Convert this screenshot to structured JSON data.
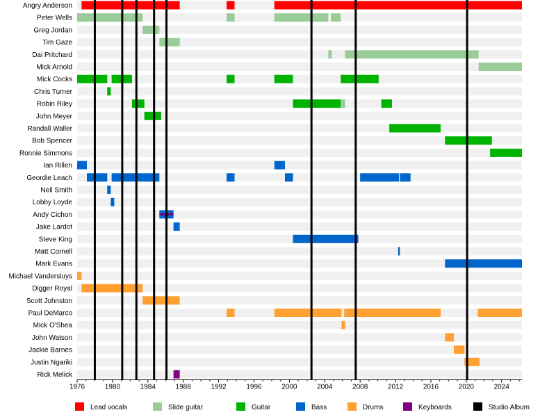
{
  "chart_data": {
    "type": "timeline",
    "x_axis": {
      "min": 1976,
      "max": 2026.3,
      "ticks": [
        1976,
        1980,
        1984,
        1988,
        1992,
        1996,
        2000,
        2004,
        2008,
        2012,
        2016,
        2020,
        2024
      ],
      "tick_labels": [
        "1976",
        "1980",
        "1984",
        "1988",
        "1992",
        "1996",
        "2000",
        "2004",
        "2008",
        "2012",
        "2016",
        "2020",
        "2024"
      ]
    },
    "legend": [
      {
        "key": "vocals",
        "label": "Lead vocals",
        "color": "#ff0000"
      },
      {
        "key": "slide",
        "label": "Slide guitar",
        "color": "#99cc99"
      },
      {
        "key": "guitar",
        "label": "Guitar",
        "color": "#00b300"
      },
      {
        "key": "bass",
        "label": "Bass",
        "color": "#0066cc"
      },
      {
        "key": "drums",
        "label": "Drums",
        "color": "#ffa033"
      },
      {
        "key": "keys",
        "label": "Keyboards",
        "color": "#800080"
      },
      {
        "key": "album",
        "label": "Studio Album",
        "color": "#000000"
      }
    ],
    "albums": [
      1978.0,
      1981.1,
      1982.7,
      1984.7,
      1986.1,
      2002.5,
      2007.5,
      2020.1
    ],
    "members": [
      {
        "name": "Angry Anderson",
        "spans": [
          {
            "r": "vocals",
            "s": 1976.5,
            "e": 1987.6
          },
          {
            "r": "vocals",
            "s": 1992.9,
            "e": 1993.8
          },
          {
            "r": "vocals",
            "s": 1998.3,
            "e": 2026.3
          }
        ]
      },
      {
        "name": "Peter Wells",
        "spans": [
          {
            "r": "slide",
            "s": 1976.0,
            "e": 1983.4
          },
          {
            "r": "slide",
            "s": 1992.9,
            "e": 1993.8
          },
          {
            "r": "slide",
            "s": 1998.3,
            "e": 2004.4
          },
          {
            "r": "slide",
            "s": 2004.7,
            "e": 2005.8
          }
        ]
      },
      {
        "name": "Greg Jordan",
        "spans": [
          {
            "r": "slide",
            "s": 1983.4,
            "e": 1985.3
          }
        ]
      },
      {
        "name": "Tim Gaze",
        "spans": [
          {
            "r": "slide",
            "s": 1985.3,
            "e": 1987.6
          }
        ]
      },
      {
        "name": "Dai Pritchard",
        "spans": [
          {
            "r": "slide",
            "s": 2004.4,
            "e": 2004.8
          },
          {
            "r": "slide",
            "s": 2006.3,
            "e": 2021.4
          }
        ]
      },
      {
        "name": "Mick Arnold",
        "spans": [
          {
            "r": "slide",
            "s": 2021.4,
            "e": 2026.3
          }
        ]
      },
      {
        "name": "Mick Cocks",
        "spans": [
          {
            "r": "guitar",
            "s": 1976.0,
            "e": 1979.4
          },
          {
            "r": "guitar",
            "s": 1979.9,
            "e": 1982.2
          },
          {
            "r": "guitar",
            "s": 1992.9,
            "e": 1993.8
          },
          {
            "r": "guitar",
            "s": 1998.3,
            "e": 2000.4
          },
          {
            "r": "guitar",
            "s": 2005.8,
            "e": 2010.1
          }
        ]
      },
      {
        "name": "Chris Turner",
        "spans": [
          {
            "r": "guitar",
            "s": 1979.4,
            "e": 1979.8
          }
        ]
      },
      {
        "name": "Robin Riley",
        "spans": [
          {
            "r": "guitar",
            "s": 1982.2,
            "e": 1983.6
          },
          {
            "r": "guitar",
            "s": 2000.4,
            "e": 2005.8
          },
          {
            "r": "slide",
            "s": 2005.8,
            "e": 2006.3
          },
          {
            "r": "guitar",
            "s": 2010.4,
            "e": 2011.6
          }
        ]
      },
      {
        "name": "John Meyer",
        "spans": [
          {
            "r": "guitar",
            "s": 1983.6,
            "e": 1985.5
          }
        ]
      },
      {
        "name": "Randall Waller",
        "spans": [
          {
            "r": "guitar",
            "s": 2011.3,
            "e": 2017.1
          }
        ]
      },
      {
        "name": "Bob Spencer",
        "spans": [
          {
            "r": "guitar",
            "s": 2017.6,
            "e": 2022.9
          }
        ]
      },
      {
        "name": "Ronnie Simmons",
        "spans": [
          {
            "r": "guitar",
            "s": 2022.7,
            "e": 2026.3
          }
        ]
      },
      {
        "name": "Ian Rillen",
        "spans": [
          {
            "r": "bass",
            "s": 1976.0,
            "e": 1977.1
          },
          {
            "r": "bass",
            "s": 1998.3,
            "e": 1999.5
          }
        ]
      },
      {
        "name": "Geordie Leach",
        "spans": [
          {
            "r": "bass",
            "s": 1977.1,
            "e": 1979.4
          },
          {
            "r": "bass",
            "s": 1979.9,
            "e": 1985.3
          },
          {
            "r": "bass",
            "s": 1992.9,
            "e": 1993.8
          },
          {
            "r": "bass",
            "s": 1999.5,
            "e": 2000.4
          },
          {
            "r": "bass",
            "s": 2008.0,
            "e": 2012.4
          },
          {
            "r": "bass",
            "s": 2012.5,
            "e": 2013.7
          }
        ]
      },
      {
        "name": "Neil Smith",
        "spans": [
          {
            "r": "bass",
            "s": 1979.4,
            "e": 1979.8
          }
        ]
      },
      {
        "name": "Lobby Loyde",
        "spans": [
          {
            "r": "bass",
            "s": 1979.8,
            "e": 1980.2
          }
        ]
      },
      {
        "name": "Andy Cichon",
        "spans": [
          {
            "r": "bass",
            "s": 1985.3,
            "e": 1986.9
          },
          {
            "r": "keys",
            "s": 1985.3,
            "e": 1986.9
          }
        ]
      },
      {
        "name": "Jake Lardot",
        "spans": [
          {
            "r": "bass",
            "s": 1986.9,
            "e": 1987.6
          }
        ]
      },
      {
        "name": "Steve King",
        "spans": [
          {
            "r": "bass",
            "s": 2000.4,
            "e": 2007.8
          }
        ]
      },
      {
        "name": "Matt Cornell",
        "spans": [
          {
            "r": "bass",
            "s": 2012.3,
            "e": 2012.5
          }
        ]
      },
      {
        "name": "Mark Evans",
        "spans": [
          {
            "r": "bass",
            "s": 2017.6,
            "e": 2026.3
          }
        ]
      },
      {
        "name": "Michael Vandersluys",
        "spans": [
          {
            "r": "drums",
            "s": 1976.0,
            "e": 1976.5
          }
        ]
      },
      {
        "name": "Digger Royal",
        "spans": [
          {
            "r": "drums",
            "s": 1976.5,
            "e": 1983.4
          }
        ]
      },
      {
        "name": "Scott Johnston",
        "spans": [
          {
            "r": "drums",
            "s": 1983.4,
            "e": 1987.6
          }
        ]
      },
      {
        "name": "Paul DeMarco",
        "spans": [
          {
            "r": "drums",
            "s": 1992.9,
            "e": 1993.8
          },
          {
            "r": "drums",
            "s": 1998.3,
            "e": 2005.9
          },
          {
            "r": "drums",
            "s": 2006.2,
            "e": 2017.1
          },
          {
            "r": "drums",
            "s": 2021.3,
            "e": 2026.3
          }
        ]
      },
      {
        "name": "Mick O'Shea",
        "spans": [
          {
            "r": "drums",
            "s": 2005.9,
            "e": 2006.3
          }
        ]
      },
      {
        "name": "John Watson",
        "spans": [
          {
            "r": "drums",
            "s": 2017.6,
            "e": 2018.6
          }
        ]
      },
      {
        "name": "Jackie Barnes",
        "spans": [
          {
            "r": "drums",
            "s": 2018.6,
            "e": 2019.8
          }
        ]
      },
      {
        "name": "Justin Ngariki",
        "spans": [
          {
            "r": "drums",
            "s": 2019.8,
            "e": 2021.5
          }
        ]
      },
      {
        "name": "Rick Melick",
        "spans": [
          {
            "r": "keys",
            "s": 1986.9,
            "e": 1987.6
          }
        ]
      }
    ]
  }
}
